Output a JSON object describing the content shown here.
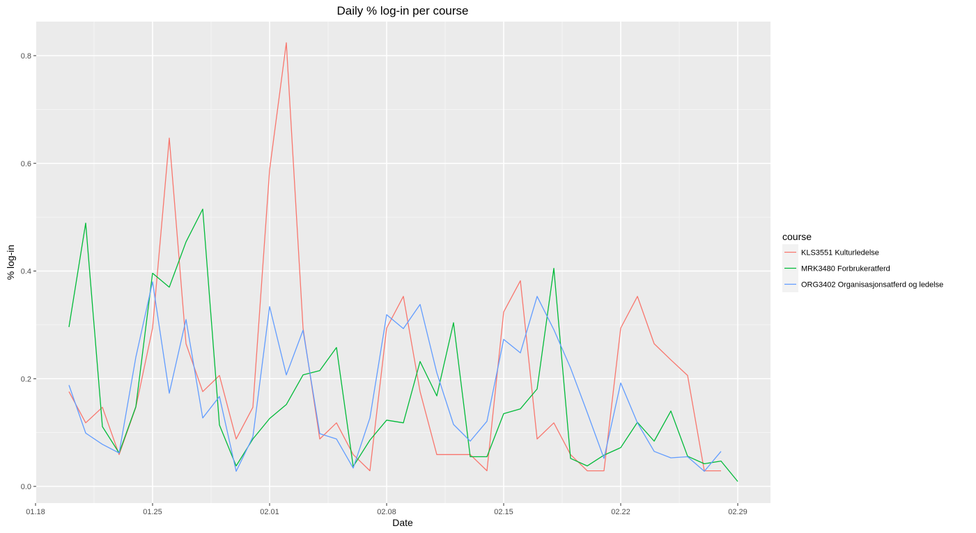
{
  "chart_data": {
    "type": "line",
    "title": "Daily % log-in per course",
    "xlabel": "Date",
    "ylabel": "% log-in",
    "x_ticks": [
      "01.18",
      "01.25",
      "02.01",
      "02.08",
      "02.15",
      "02.22",
      "02.29"
    ],
    "y_ticks": [
      "0.0",
      "0.2",
      "0.4",
      "0.6",
      "0.8"
    ],
    "ylim": [
      -0.035,
      0.865
    ],
    "grid": true,
    "legend_title": "course",
    "legend_position": "right",
    "series": [
      {
        "name": "KLS3551 Kulturledelse",
        "color": "#F8766D",
        "points": [
          [
            "01.20",
            0.176
          ],
          [
            "01.21",
            0.118
          ],
          [
            "01.22",
            0.147
          ],
          [
            "01.23",
            0.059
          ],
          [
            "01.24",
            0.147
          ],
          [
            "01.25",
            0.294
          ],
          [
            "01.26",
            0.647
          ],
          [
            "01.27",
            0.265
          ],
          [
            "01.28",
            0.176
          ],
          [
            "01.29",
            0.206
          ],
          [
            "01.30",
            0.088
          ],
          [
            "01.31",
            0.147
          ],
          [
            "02.01",
            0.588
          ],
          [
            "02.02",
            0.824
          ],
          [
            "02.03",
            0.294
          ],
          [
            "02.04",
            0.088
          ],
          [
            "02.05",
            0.118
          ],
          [
            "02.06",
            0.059
          ],
          [
            "02.07",
            0.029
          ],
          [
            "02.08",
            0.294
          ],
          [
            "02.09",
            0.353
          ],
          [
            "02.10",
            0.176
          ],
          [
            "02.11",
            0.059
          ],
          [
            "02.12",
            0.059
          ],
          [
            "02.13",
            0.059
          ],
          [
            "02.14",
            0.029
          ],
          [
            "02.15",
            0.324
          ],
          [
            "02.16",
            0.382
          ],
          [
            "02.17",
            0.088
          ],
          [
            "02.18",
            0.118
          ],
          [
            "02.19",
            0.059
          ],
          [
            "02.20",
            0.029
          ],
          [
            "02.21",
            0.029
          ],
          [
            "02.22",
            0.294
          ],
          [
            "02.23",
            0.353
          ],
          [
            "02.24",
            0.265
          ],
          [
            "02.25",
            0.235
          ],
          [
            "02.26",
            0.206
          ],
          [
            "02.27",
            0.029
          ],
          [
            "02.28",
            0.029
          ]
        ]
      },
      {
        "name": "MRK3480 Forbrukeratferd",
        "color": "#00BA38",
        "points": [
          [
            "01.20",
            0.296
          ],
          [
            "01.21",
            0.489
          ],
          [
            "01.22",
            0.111
          ],
          [
            "01.23",
            0.062
          ],
          [
            "01.24",
            0.148
          ],
          [
            "01.25",
            0.396
          ],
          [
            "01.26",
            0.37
          ],
          [
            "01.27",
            0.454
          ],
          [
            "01.28",
            0.515
          ],
          [
            "01.29",
            0.114
          ],
          [
            "01.30",
            0.038
          ],
          [
            "01.31",
            0.088
          ],
          [
            "02.01",
            0.126
          ],
          [
            "02.02",
            0.152
          ],
          [
            "02.03",
            0.207
          ],
          [
            "02.04",
            0.215
          ],
          [
            "02.05",
            0.258
          ],
          [
            "02.06",
            0.037
          ],
          [
            "02.07",
            0.086
          ],
          [
            "02.08",
            0.123
          ],
          [
            "02.09",
            0.118
          ],
          [
            "02.10",
            0.232
          ],
          [
            "02.11",
            0.168
          ],
          [
            "02.12",
            0.304
          ],
          [
            "02.13",
            0.055
          ],
          [
            "02.14",
            0.055
          ],
          [
            "02.15",
            0.135
          ],
          [
            "02.16",
            0.144
          ],
          [
            "02.17",
            0.181
          ],
          [
            "02.18",
            0.405
          ],
          [
            "02.19",
            0.052
          ],
          [
            "02.20",
            0.038
          ],
          [
            "02.21",
            0.058
          ],
          [
            "02.22",
            0.072
          ],
          [
            "02.23",
            0.119
          ],
          [
            "02.24",
            0.084
          ],
          [
            "02.25",
            0.14
          ],
          [
            "02.26",
            0.056
          ],
          [
            "02.27",
            0.042
          ],
          [
            "02.28",
            0.047
          ],
          [
            "02.29",
            0.009
          ]
        ]
      },
      {
        "name": "ORG3402 Organisasjonsatferd og ledelse",
        "color": "#619CFF",
        "points": [
          [
            "01.20",
            0.188
          ],
          [
            "01.21",
            0.099
          ],
          [
            "01.22",
            0.078
          ],
          [
            "01.23",
            0.062
          ],
          [
            "01.24",
            0.24
          ],
          [
            "01.25",
            0.38
          ],
          [
            "01.26",
            0.173
          ],
          [
            "01.27",
            0.31
          ],
          [
            "01.28",
            0.127
          ],
          [
            "01.29",
            0.167
          ],
          [
            "01.30",
            0.028
          ],
          [
            "01.31",
            0.092
          ],
          [
            "02.01",
            0.334
          ],
          [
            "02.02",
            0.207
          ],
          [
            "02.03",
            0.29
          ],
          [
            "02.04",
            0.098
          ],
          [
            "02.05",
            0.088
          ],
          [
            "02.06",
            0.034
          ],
          [
            "02.07",
            0.127
          ],
          [
            "02.08",
            0.319
          ],
          [
            "02.09",
            0.293
          ],
          [
            "02.10",
            0.338
          ],
          [
            "02.11",
            0.211
          ],
          [
            "02.12",
            0.115
          ],
          [
            "02.13",
            0.084
          ],
          [
            "02.14",
            0.121
          ],
          [
            "02.15",
            0.273
          ],
          [
            "02.16",
            0.248
          ],
          [
            "02.17",
            0.353
          ],
          [
            "02.18",
            0.291
          ],
          [
            "02.19",
            0.22
          ],
          [
            "02.20",
            0.137
          ],
          [
            "02.21",
            0.052
          ],
          [
            "02.22",
            0.192
          ],
          [
            "02.23",
            0.118
          ],
          [
            "02.24",
            0.065
          ],
          [
            "02.25",
            0.053
          ],
          [
            "02.26",
            0.055
          ],
          [
            "02.27",
            0.028
          ],
          [
            "02.28",
            0.065
          ]
        ]
      }
    ]
  }
}
